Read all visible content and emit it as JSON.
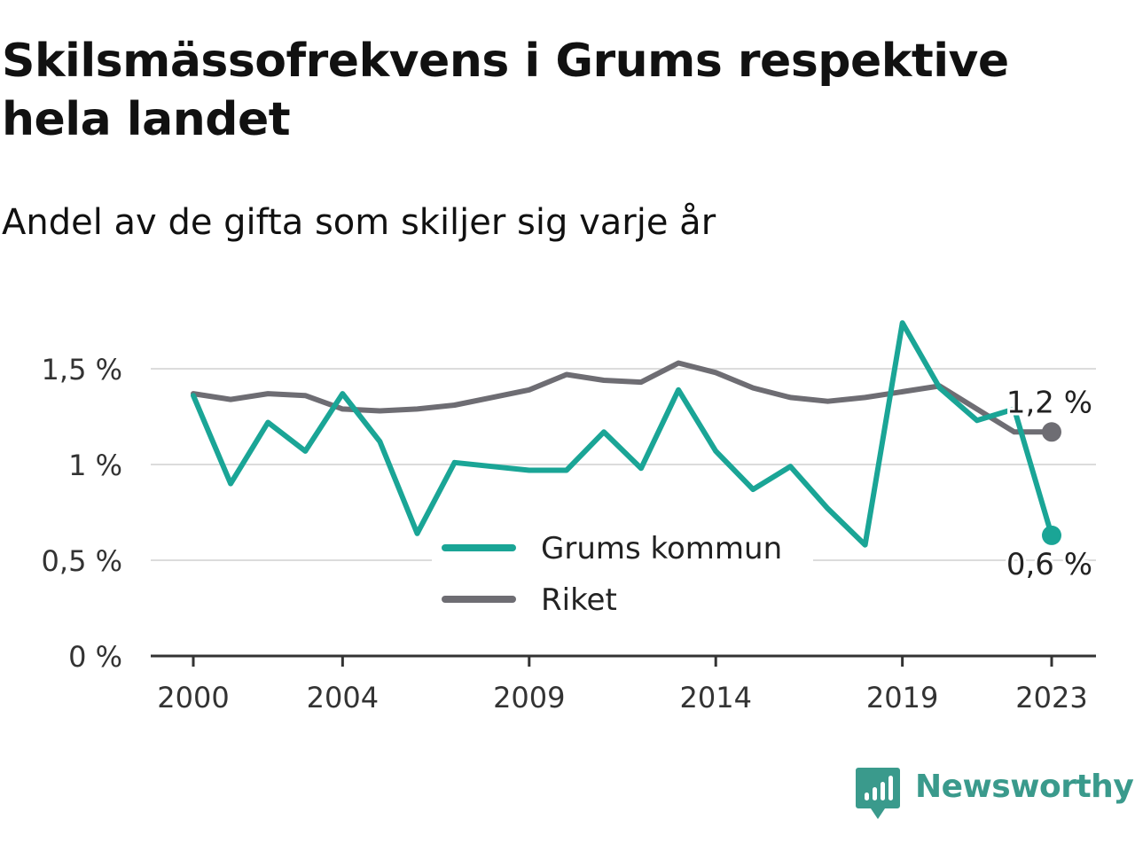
{
  "header": {
    "title": "Skilsmässofrekvens i Grums respektive hela landet",
    "subtitle": "Andel av de gifta som skiljer sig varje år"
  },
  "brand": {
    "name": "Newsworthy",
    "icon": "newsworthy-logo-icon",
    "color": "#3a9a8c"
  },
  "chart_data": {
    "type": "line",
    "x": [
      2000,
      2001,
      2002,
      2003,
      2004,
      2005,
      2006,
      2007,
      2008,
      2009,
      2010,
      2011,
      2012,
      2013,
      2014,
      2015,
      2016,
      2017,
      2018,
      2019,
      2020,
      2021,
      2022,
      2023
    ],
    "x_ticks": [
      2000,
      2004,
      2009,
      2014,
      2019,
      2023
    ],
    "x_tick_labels": [
      "2000",
      "2004",
      "2009",
      "2014",
      "2019",
      "2023"
    ],
    "xlim": [
      2000,
      2023
    ],
    "ylim": [
      0,
      1.7
    ],
    "y_ticks": [
      0,
      0.5,
      1,
      1.5
    ],
    "y_tick_labels": [
      "0 %",
      "0,5 %",
      "1 %",
      "1,5 %"
    ],
    "grid": true,
    "legend_position": "center",
    "series": [
      {
        "name": "Grums kommun",
        "color": "#1aa596",
        "values": [
          1.36,
          0.9,
          1.22,
          1.07,
          1.37,
          1.12,
          0.64,
          1.01,
          0.99,
          0.97,
          0.97,
          1.17,
          0.98,
          1.39,
          1.07,
          0.87,
          0.99,
          0.77,
          0.58,
          1.74,
          1.4,
          1.23,
          1.29,
          0.63
        ],
        "end_label": "0,6 %"
      },
      {
        "name": "Riket",
        "color": "#6e6d73",
        "values": [
          1.37,
          1.34,
          1.37,
          1.36,
          1.29,
          1.28,
          1.29,
          1.31,
          1.35,
          1.39,
          1.47,
          1.44,
          1.43,
          1.53,
          1.48,
          1.4,
          1.35,
          1.33,
          1.35,
          1.38,
          1.41,
          1.29,
          1.17,
          1.17
        ],
        "end_label": "1,2 %"
      }
    ]
  }
}
